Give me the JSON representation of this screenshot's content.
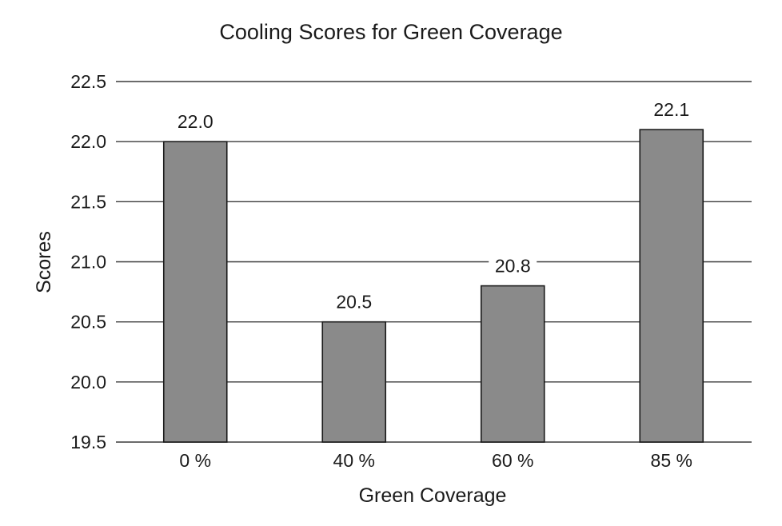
{
  "chart_data": {
    "type": "bar",
    "title": "Cooling Scores for Green Coverage",
    "xlabel": "Green Coverage",
    "ylabel": "Scores",
    "categories": [
      "0 %",
      "40 %",
      "60 %",
      "85 %"
    ],
    "values": [
      22.0,
      20.5,
      20.8,
      22.1
    ],
    "data_labels": [
      "22.0",
      "20.5",
      "20.8",
      "22.1"
    ],
    "ylim": [
      19.5,
      22.5
    ],
    "yticks": [
      19.5,
      20.0,
      20.5,
      21.0,
      21.5,
      22.0,
      22.5
    ],
    "ytick_labels": [
      "19.5",
      "20.0",
      "20.5",
      "21.0",
      "21.5",
      "22.0",
      "22.5"
    ],
    "grid": true,
    "bar_color": "#8a8a8a",
    "bar_edge_color": "#1a1a1a"
  }
}
